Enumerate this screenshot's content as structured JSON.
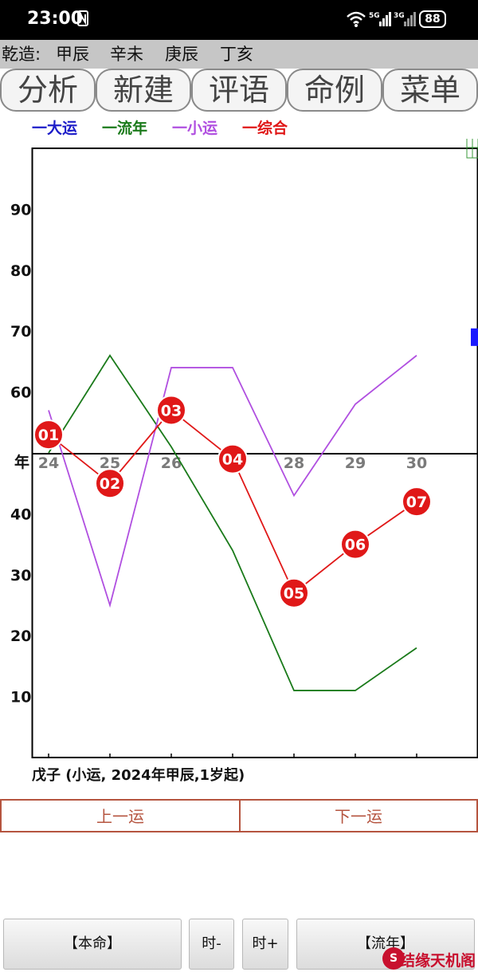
{
  "status_bar": {
    "time": "23:00",
    "signal1_label": "5G",
    "signal2_label": "3G",
    "battery": "88",
    "icons": [
      "nfc-icon",
      "wifi-icon",
      "signal-icon",
      "battery-icon"
    ]
  },
  "info_bar": {
    "label": "乾造:",
    "pillars": [
      "甲辰",
      "辛未",
      "庚辰",
      "丁亥"
    ]
  },
  "tabs": [
    "分析",
    "新建",
    "评语",
    "命例",
    "菜单"
  ],
  "legend": [
    {
      "label": "一大运",
      "color": "#1c1cc8"
    },
    {
      "label": "一流年",
      "color": "#1a7a1a"
    },
    {
      "label": "一小运",
      "color": "#b04fe0"
    },
    {
      "label": "一综合",
      "color": "#e01818"
    }
  ],
  "chart_data": {
    "type": "line",
    "x": [
      "24",
      "25",
      "26",
      "27",
      "28",
      "29",
      "30"
    ],
    "x_labels_shown": [
      "24",
      "25",
      "26",
      "28",
      "29",
      "30"
    ],
    "axis_label": "年",
    "y_ticks": [
      "90",
      "80",
      "70",
      "60",
      "40",
      "30",
      "20",
      "10"
    ],
    "ylim": [
      0,
      100
    ],
    "baseline": 50,
    "series": [
      {
        "name": "流年",
        "color": "#1a7a1a",
        "values": [
          50,
          66,
          51,
          34,
          11,
          11,
          18
        ]
      },
      {
        "name": "小运",
        "color": "#b04fe0",
        "values": [
          57,
          25,
          64,
          64,
          43,
          58,
          66
        ]
      },
      {
        "name": "综合",
        "color": "#e01818",
        "values": [
          53,
          45,
          57,
          49,
          27,
          35,
          42
        ],
        "point_labels": [
          "01",
          "02",
          "03",
          "04",
          "05",
          "06",
          "07"
        ]
      }
    ],
    "right_marker_color": "#1a1aff",
    "right_marker_value": 69
  },
  "caption": "戊子 (小运, 2024年甲辰,1岁起)",
  "nav": {
    "prev": "上一运",
    "next": "下一运"
  },
  "bottom_buttons": [
    "【本命】",
    "时-",
    "时+",
    "【流年】"
  ],
  "watermark": {
    "seal": "S",
    "text": "结缘天机阁"
  }
}
